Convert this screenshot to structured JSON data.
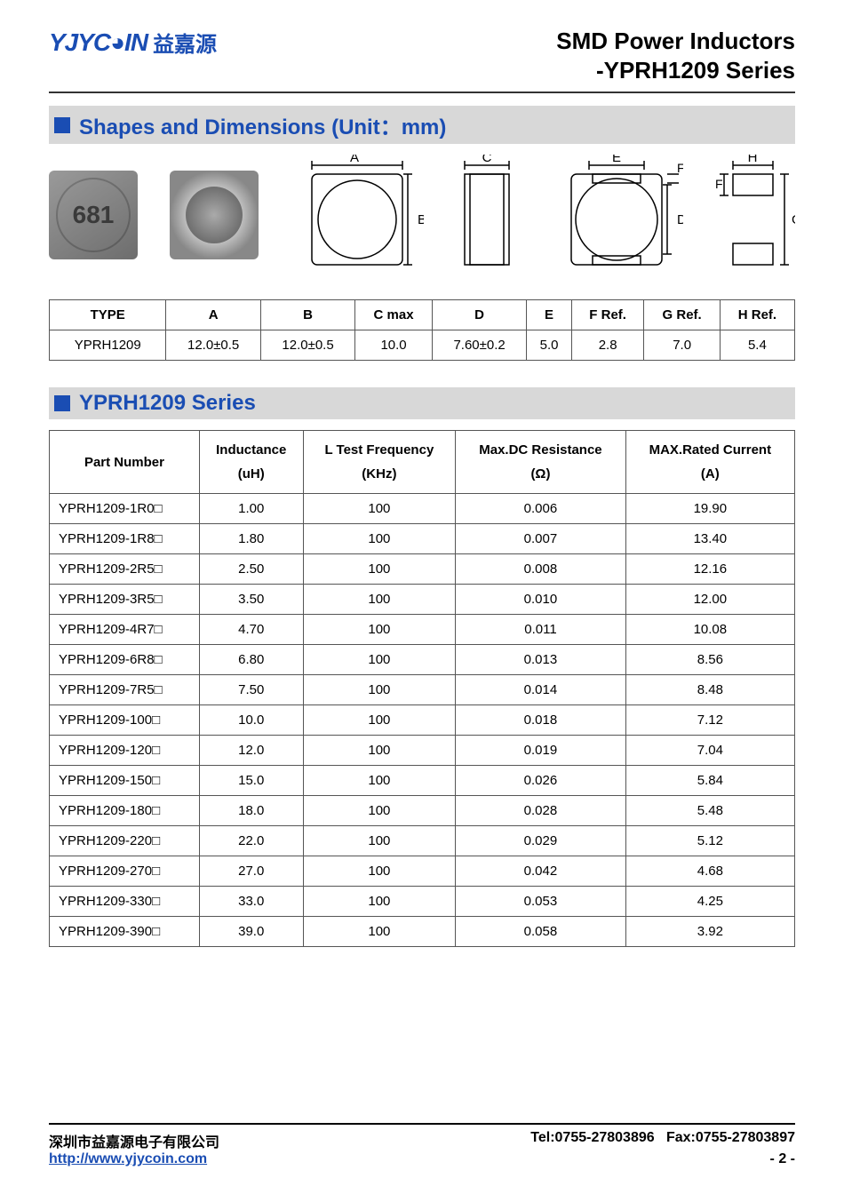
{
  "header": {
    "logo_text": "YJYC◕IN",
    "logo_cn": "益嘉源",
    "title_line1": "SMD Power Inductors",
    "title_line2": "-YPRH1209 Series"
  },
  "section1": {
    "title": "Shapes and Dimensions (Unit：mm)"
  },
  "diagram_labels": {
    "A": "A",
    "B": "B",
    "C": "C",
    "D": "D",
    "E": "E",
    "F": "F",
    "G": "G",
    "H": "H"
  },
  "dim_table": {
    "headers": [
      "TYPE",
      "A",
      "B",
      "C max",
      "D",
      "E",
      "F Ref.",
      "G Ref.",
      "H Ref."
    ],
    "row": [
      "YPRH1209",
      "12.0±0.5",
      "12.0±0.5",
      "10.0",
      "7.60±0.2",
      "5.0",
      "2.8",
      "7.0",
      "5.4"
    ]
  },
  "section2": {
    "title": "YPRH1209 Series"
  },
  "series_table": {
    "headers": [
      {
        "l1": "Part Number",
        "l2": ""
      },
      {
        "l1": "Inductance",
        "l2": "(uH)"
      },
      {
        "l1": "L Test Frequency",
        "l2": "(KHz)"
      },
      {
        "l1": "Max.DC Resistance",
        "l2": "(Ω)"
      },
      {
        "l1": "MAX.Rated Current",
        "l2": "(A)"
      }
    ],
    "rows": [
      [
        "YPRH1209-1R0□",
        "1.00",
        "100",
        "0.006",
        "19.90"
      ],
      [
        "YPRH1209-1R8□",
        "1.80",
        "100",
        "0.007",
        "13.40"
      ],
      [
        "YPRH1209-2R5□",
        "2.50",
        "100",
        "0.008",
        "12.16"
      ],
      [
        "YPRH1209-3R5□",
        "3.50",
        "100",
        "0.010",
        "12.00"
      ],
      [
        "YPRH1209-4R7□",
        "4.70",
        "100",
        "0.011",
        "10.08"
      ],
      [
        "YPRH1209-6R8□",
        "6.80",
        "100",
        "0.013",
        "8.56"
      ],
      [
        "YPRH1209-7R5□",
        "7.50",
        "100",
        "0.014",
        "8.48"
      ],
      [
        "YPRH1209-100□",
        "10.0",
        "100",
        "0.018",
        "7.12"
      ],
      [
        "YPRH1209-120□",
        "12.0",
        "100",
        "0.019",
        "7.04"
      ],
      [
        "YPRH1209-150□",
        "15.0",
        "100",
        "0.026",
        "5.84"
      ],
      [
        "YPRH1209-180□",
        "18.0",
        "100",
        "0.028",
        "5.48"
      ],
      [
        "YPRH1209-220□",
        "22.0",
        "100",
        "0.029",
        "5.12"
      ],
      [
        "YPRH1209-270□",
        "27.0",
        "100",
        "0.042",
        "4.68"
      ],
      [
        "YPRH1209-330□",
        "33.0",
        "100",
        "0.053",
        "4.25"
      ],
      [
        "YPRH1209-390□",
        "39.0",
        "100",
        "0.058",
        "3.92"
      ]
    ]
  },
  "footer": {
    "company": "深圳市益嘉源电子有限公司",
    "tel": "Tel:0755-27803896",
    "fax": "Fax:0755-27803897",
    "url": "http://www.yjycoin.com",
    "page": "- 2 -"
  }
}
